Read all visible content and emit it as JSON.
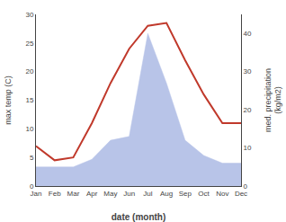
{
  "chart_data": {
    "type": "line",
    "xlabel": "date (month)",
    "ylabel": "max temp (C)",
    "y2label": "med. precipitation\n(kg/m2)",
    "categories": [
      "Jan",
      "Feb",
      "Mar",
      "Apr",
      "May",
      "Jun",
      "Jul",
      "Aug",
      "Sep",
      "Oct",
      "Nov",
      "Dec"
    ],
    "series": [
      {
        "type": "area",
        "axis": "y2",
        "color": "#b8c4e8",
        "values": [
          5.0,
          5.0,
          5.0,
          7.0,
          12.0,
          13.0,
          40.0,
          27.0,
          12.0,
          8.0,
          6.0,
          6.0
        ]
      },
      {
        "type": "line",
        "color": "#c0392b",
        "values": [
          7.0,
          4.5,
          5.0,
          11.0,
          18.0,
          24.0,
          28.0,
          28.5,
          22.0,
          16.0,
          11.0,
          11.0
        ]
      }
    ],
    "ylim": [
      0,
      30
    ],
    "yticks": [
      0,
      5,
      10,
      15,
      20,
      25,
      30
    ],
    "y2lim": [
      0,
      45
    ],
    "y2ticks": [
      0,
      10,
      20,
      30,
      40
    ],
    "grid": false
  }
}
